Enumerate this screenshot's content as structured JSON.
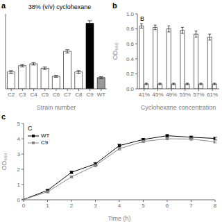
{
  "chart_data": [
    {
      "type": "bar",
      "title": "38% (v/v) cyclohexane",
      "xlabel": "Strain number",
      "annotations": [
        "a"
      ],
      "categories": [
        "C2",
        "C3",
        "C4",
        "C5",
        "C6",
        "C7",
        "C8",
        "C9",
        "WT"
      ],
      "values": [
        0.27,
        0.37,
        0.4,
        0.33,
        0.2,
        0.6,
        0.27,
        1.05,
        0.18
      ],
      "errors": [
        0.02,
        0.02,
        0.02,
        0.02,
        0.015,
        0.025,
        0.02,
        0.04,
        0.015
      ],
      "colors": [
        "#ffffff",
        "#ffffff",
        "#ffffff",
        "#ffffff",
        "#ffffff",
        "#ffffff",
        "#ffffff",
        "#000000",
        "#999999"
      ],
      "ylim": [
        0,
        1.2
      ],
      "tick_labels": "x",
      "grid": false
    },
    {
      "type": "bar",
      "xlabel": "Cyclohexane concentration",
      "ylabel": "OD₆₆₀",
      "annotations": [
        "b",
        "B"
      ],
      "categories": [
        "41%",
        "45%",
        "49%",
        "53%",
        "57%",
        "61%"
      ],
      "series": [
        {
          "color": "#ffffff",
          "values": [
            0.84,
            0.82,
            0.8,
            0.78,
            0.73,
            0.69
          ],
          "errors": [
            0.03,
            0.03,
            0.04,
            0.04,
            0.04,
            0.04
          ]
        },
        {
          "color": "#ffffff",
          "values": [
            0.065,
            0.065,
            0.065,
            0.065,
            0.065,
            0.065
          ],
          "errors": [
            0.01,
            0.01,
            0.01,
            0.01,
            0.01,
            0.01
          ]
        }
      ],
      "ylim": [
        0.0,
        1.0
      ],
      "yticks": [
        {
          "value": 0,
          "label": "0.0"
        },
        0.2,
        0.4,
        0.6,
        0.8,
        {
          "value": 1,
          "label": "1.0"
        }
      ],
      "grid": false
    },
    {
      "type": "line",
      "xlabel": "Time (h)",
      "ylabel": "OD₆₆₀",
      "annotations": [
        "c",
        "C"
      ],
      "x": [
        0,
        1,
        2,
        3,
        4,
        5,
        6,
        7,
        8
      ],
      "series": [
        {
          "name": "WT",
          "color": "#000000",
          "marker": "square",
          "values": [
            0.02,
            0.62,
            1.8,
            2.35,
            3.55,
            3.95,
            4.2,
            4.1,
            4.02
          ],
          "errors": [
            0.01,
            0.05,
            0.07,
            0.09,
            0.09,
            0.07,
            0.07,
            0.07,
            0.07
          ]
        },
        {
          "name": "C9",
          "color": "#888888",
          "marker": "square",
          "values": [
            0.02,
            0.52,
            1.5,
            2.25,
            3.35,
            3.82,
            4.0,
            3.98,
            3.8
          ],
          "errors": [
            0.01,
            0.05,
            0.07,
            0.09,
            0.09,
            0.07,
            0.07,
            0.07,
            0.07
          ]
        }
      ],
      "xlim": [
        0,
        8
      ],
      "xticks": [
        0,
        1,
        2,
        3,
        4,
        5,
        6,
        7,
        8
      ],
      "ylim": [
        0,
        5
      ],
      "yticks": [
        0,
        1,
        2,
        3,
        4,
        5
      ],
      "legend": "upper left",
      "grid": false
    }
  ]
}
